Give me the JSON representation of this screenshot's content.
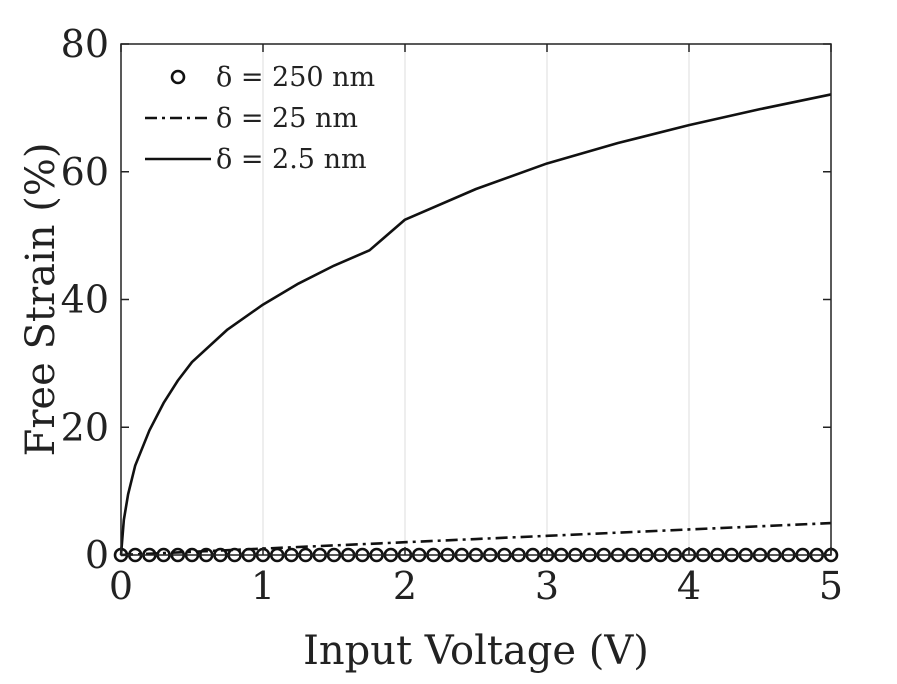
{
  "chart_data": {
    "type": "line",
    "title": "",
    "xlabel": "Input Voltage (V)",
    "ylabel": "Free Strain (%)",
    "xlim": [
      0,
      5
    ],
    "ylim": [
      0,
      80
    ],
    "x_ticks": [
      "0",
      "1",
      "2",
      "3",
      "4",
      "5"
    ],
    "y_ticks": [
      "0",
      "20",
      "40",
      "60",
      "80"
    ],
    "grid": "vertical",
    "legend_position": "top-left",
    "series": [
      {
        "name": "δ = 250 nm",
        "style": "circle-markers",
        "color": "#111111",
        "x": [
          0,
          0.1,
          0.2,
          0.3,
          0.4,
          0.5,
          0.6,
          0.7,
          0.8,
          0.9,
          1.0,
          1.1,
          1.2,
          1.3,
          1.4,
          1.5,
          1.6,
          1.7,
          1.8,
          1.9,
          2.0,
          2.1,
          2.2,
          2.3,
          2.4,
          2.5,
          2.6,
          2.7,
          2.8,
          2.9,
          3.0,
          3.1,
          3.2,
          3.3,
          3.4,
          3.5,
          3.6,
          3.7,
          3.8,
          3.9,
          4.0,
          4.1,
          4.2,
          4.3,
          4.4,
          4.5,
          4.6,
          4.7,
          4.8,
          4.9,
          5.0
        ],
        "y": [
          0,
          0,
          0,
          0,
          0,
          0,
          0,
          0,
          0,
          0,
          0,
          0,
          0,
          0,
          0,
          0,
          0,
          0,
          0,
          0,
          0,
          0,
          0,
          0,
          0,
          0,
          0,
          0,
          0,
          0,
          0,
          0,
          0,
          0,
          0,
          0,
          0,
          0,
          0,
          0,
          0,
          0,
          0,
          0,
          0,
          0,
          0,
          0,
          0,
          0,
          0
        ]
      },
      {
        "name": "δ = 25 nm",
        "style": "dash-dot",
        "color": "#111111",
        "x": [
          0,
          0.5,
          1.0,
          1.5,
          2.0,
          2.5,
          3.0,
          3.5,
          4.0,
          4.5,
          5.0
        ],
        "y": [
          0,
          0.5,
          1.0,
          1.5,
          2.0,
          2.5,
          3.0,
          3.5,
          4.0,
          4.5,
          5.0
        ]
      },
      {
        "name": "δ = 2.5 nm",
        "style": "solid",
        "color": "#111111",
        "x": [
          0,
          0.02,
          0.05,
          0.1,
          0.2,
          0.3,
          0.4,
          0.5,
          0.75,
          1.0,
          1.25,
          1.5,
          1.75,
          2.0,
          2.5,
          3.0,
          3.5,
          4.0,
          4.5,
          5.0
        ],
        "y": [
          0,
          5.5,
          9.5,
          14,
          19.5,
          23.8,
          27.3,
          30.2,
          35.3,
          39.2,
          42.5,
          45.3,
          47.7,
          52.5,
          57.3,
          61.3,
          64.5,
          67.3,
          69.8,
          72.1
        ]
      }
    ]
  }
}
